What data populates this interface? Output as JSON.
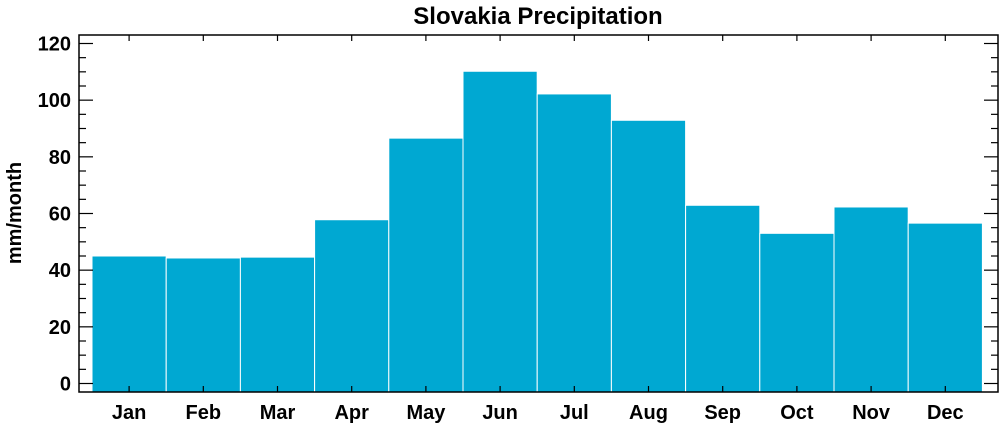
{
  "chart_data": {
    "type": "bar",
    "title": "Slovakia Precipitation",
    "xlabel": "",
    "ylabel": "mm/month",
    "categories": [
      "Jan",
      "Feb",
      "Mar",
      "Apr",
      "May",
      "Jun",
      "Jul",
      "Aug",
      "Sep",
      "Oct",
      "Nov",
      "Dec"
    ],
    "values": [
      45.0,
      44.3,
      44.6,
      57.8,
      86.6,
      110.2,
      102.2,
      92.9,
      62.9,
      53.0,
      62.3,
      56.6
    ],
    "ylim": [
      -3,
      123
    ],
    "yticks": [
      0,
      20,
      40,
      60,
      80,
      100,
      120
    ],
    "yminor_step": 5,
    "grid": false,
    "legend": "none",
    "bar_color": "#00a8d2",
    "edge_color": "#ffffff"
  }
}
